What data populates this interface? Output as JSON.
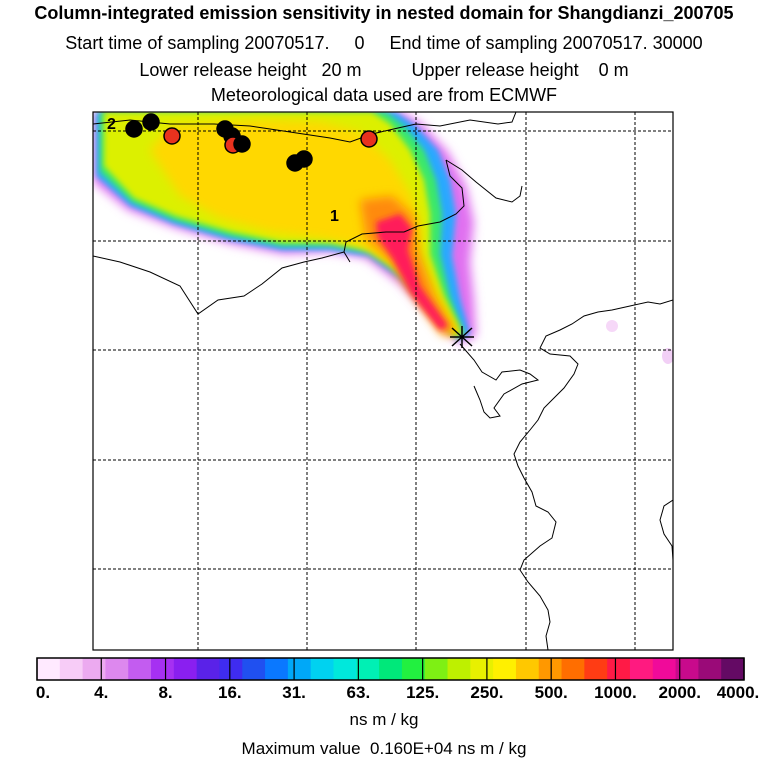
{
  "header": {
    "title": "Column-integrated emission sensitivity in nested domain for Shangdianzi_200705",
    "sampling_line": "Start time of sampling 20070517.     0     End time of sampling 20070517. 30000",
    "release_line": "Lower release height   20 m          Upper release height    0 m",
    "met_line": "Meteorological data used are from ECMWF"
  },
  "map": {
    "labels": {
      "cluster_2": "2",
      "cluster_1": "1"
    },
    "receptor_marker": "receptor-cross",
    "markers": {
      "black_circle_color": "#000000",
      "red_circle_color": "#e8321e"
    }
  },
  "colorbar": {
    "colors": [
      "#ffeaff",
      "#f7ccf7",
      "#ecaaf0",
      "#dd88ee",
      "#c35cf0",
      "#a630f2",
      "#8a1ff0",
      "#5a22e8",
      "#3f2cf0",
      "#2050f0",
      "#0a78ff",
      "#00a8f8",
      "#00d2f0",
      "#00e8dc",
      "#00f0b4",
      "#00e87a",
      "#22f040",
      "#7ef014",
      "#bef000",
      "#e8f000",
      "#fff000",
      "#ffc800",
      "#ff9800",
      "#ff6e00",
      "#ff3c14",
      "#ff1a46",
      "#ff1a80",
      "#f00a9a",
      "#c80a8c",
      "#9a0a78",
      "#640a64"
    ],
    "tick_labels": [
      "0.",
      "4.",
      "8.",
      "16.",
      "31.",
      "63.",
      "125.",
      "250.",
      "500.",
      "1000.",
      "2000.",
      "4000."
    ],
    "unit_label": "ns m / kg"
  },
  "footer": {
    "max_value_label": "Maximum value  0.160E+04 ns m / kg"
  }
}
